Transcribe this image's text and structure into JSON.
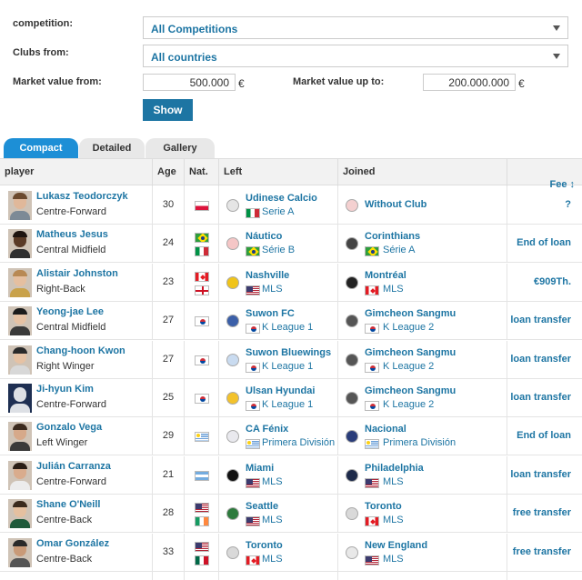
{
  "filters": {
    "competition_label": "competition:",
    "competition_value": "All Competitions",
    "clubs_from_label": "Clubs from:",
    "clubs_from_value": "All countries",
    "mv_from_label": "Market value from:",
    "mv_from_value": "500.000",
    "mv_to_label": "Market value up to:",
    "mv_to_value": "200.000.000",
    "currency": "€",
    "show_button": "Show"
  },
  "tabs": [
    "Compact",
    "Detailed",
    "Gallery"
  ],
  "columns": {
    "player": "player",
    "age": "Age",
    "nat": "Nat.",
    "left": "Left",
    "joined": "Joined",
    "fee": "Fee ↕"
  },
  "rows": [
    {
      "name": "Lukasz Teodorczyk",
      "position": "Centre-Forward",
      "age": "30",
      "left_club": "Udinese Calcio",
      "left_league": "Serie A",
      "joined_club": "Without Club",
      "joined_league": "",
      "fee": "?"
    },
    {
      "name": "Matheus Jesus",
      "position": "Central Midfield",
      "age": "24",
      "left_club": "Náutico",
      "left_league": "Série B",
      "joined_club": "Corinthians",
      "joined_league": "Série A",
      "fee": "End of loan"
    },
    {
      "name": "Alistair Johnston",
      "position": "Right-Back",
      "age": "23",
      "left_club": "Nashville",
      "left_league": "MLS",
      "joined_club": "Montréal",
      "joined_league": "MLS",
      "fee": "€909Th."
    },
    {
      "name": "Yeong-jae Lee",
      "position": "Central Midfield",
      "age": "27",
      "left_club": "Suwon FC",
      "left_league": "K League 1",
      "joined_club": "Gimcheon Sangmu",
      "joined_league": "K League 2",
      "fee": "loan transfer"
    },
    {
      "name": "Chang-hoon Kwon",
      "position": "Right Winger",
      "age": "27",
      "left_club": "Suwon Bluewings",
      "left_league": "K League 1",
      "joined_club": "Gimcheon Sangmu",
      "joined_league": "K League 2",
      "fee": "loan transfer"
    },
    {
      "name": "Ji-hyun Kim",
      "position": "Centre-Forward",
      "age": "25",
      "left_club": "Ulsan Hyundai",
      "left_league": "K League 1",
      "joined_club": "Gimcheon Sangmu",
      "joined_league": "K League 2",
      "fee": "loan transfer"
    },
    {
      "name": "Gonzalo Vega",
      "position": "Left Winger",
      "age": "29",
      "left_club": "CA Fénix",
      "left_league": "Primera División",
      "joined_club": "Nacional",
      "joined_league": "Primera División",
      "fee": "End of loan"
    },
    {
      "name": "Julián Carranza",
      "position": "Centre-Forward",
      "age": "21",
      "left_club": "Miami",
      "left_league": "MLS",
      "joined_club": "Philadelphia",
      "joined_league": "MLS",
      "fee": "loan transfer"
    },
    {
      "name": "Shane O'Neill",
      "position": "Centre-Back",
      "age": "28",
      "left_club": "Seattle",
      "left_league": "MLS",
      "joined_club": "Toronto",
      "joined_league": "MLS",
      "fee": "free transfer"
    },
    {
      "name": "Omar González",
      "position": "Centre-Back",
      "age": "33",
      "left_club": "Toronto",
      "left_league": "MLS",
      "joined_club": "New England",
      "joined_league": "MLS",
      "fee": "free transfer"
    }
  ],
  "colors": {
    "link": "#1d75a3",
    "button": "#1d75a3",
    "active_tab": "#1d8fd6"
  }
}
